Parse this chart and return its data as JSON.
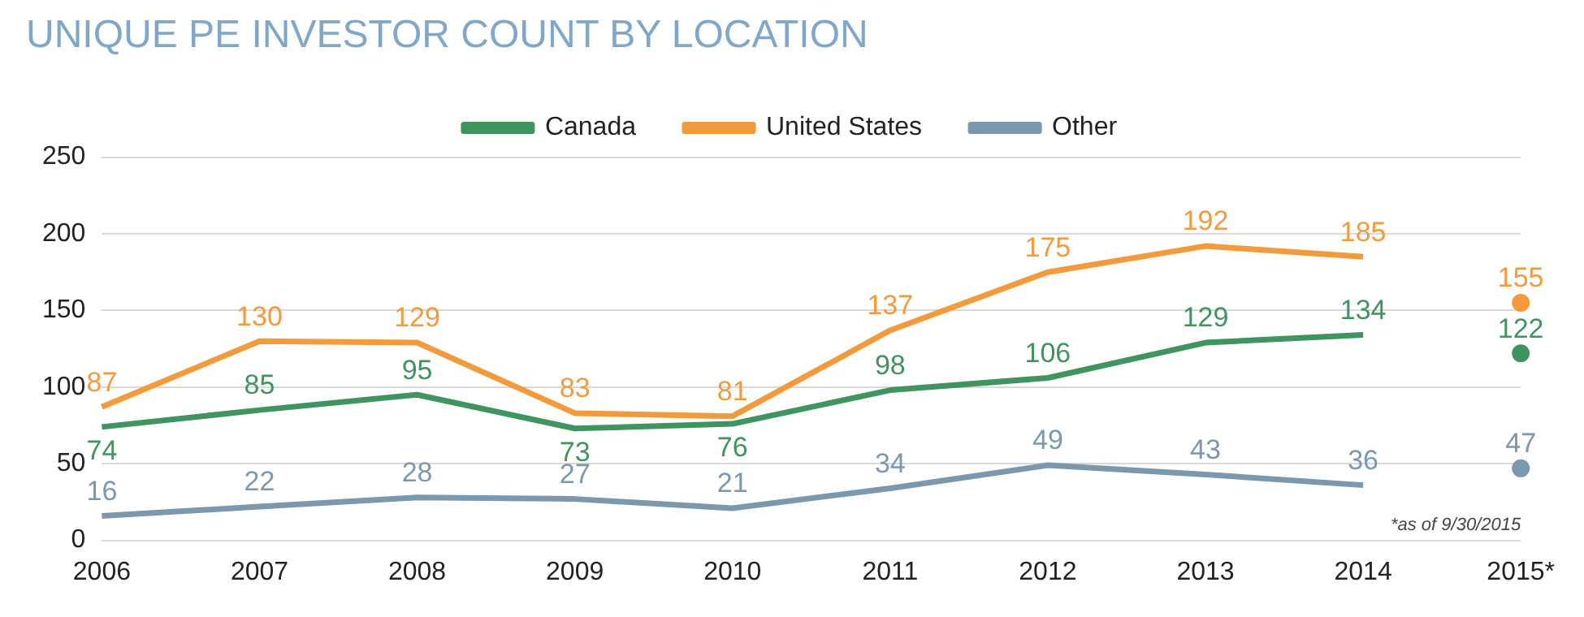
{
  "chart_data": {
    "type": "line",
    "title": "UNIQUE PE INVESTOR COUNT BY LOCATION",
    "categories": [
      "2006",
      "2007",
      "2008",
      "2009",
      "2010",
      "2011",
      "2012",
      "2013",
      "2014",
      "2015*"
    ],
    "series": [
      {
        "name": "Canada",
        "color": "#3f9460",
        "marker": "none",
        "values": [
          74,
          85,
          95,
          73,
          76,
          98,
          106,
          129,
          134,
          null
        ]
      },
      {
        "name": "United States",
        "color": "#f39a3c",
        "marker": "none",
        "values": [
          87,
          130,
          129,
          83,
          81,
          137,
          175,
          192,
          185,
          null
        ]
      },
      {
        "name": "Other",
        "color": "#7b98ae",
        "marker": "none",
        "values": [
          16,
          22,
          28,
          27,
          21,
          34,
          49,
          43,
          36,
          null
        ]
      },
      {
        "type": "scatter",
        "color": "#3f9460",
        "marker": "circle",
        "values": [
          null,
          null,
          null,
          null,
          null,
          null,
          null,
          null,
          null,
          122
        ]
      },
      {
        "type": "scatter",
        "color": "#f39a3c",
        "marker": "circle",
        "values": [
          null,
          null,
          null,
          null,
          null,
          null,
          null,
          null,
          null,
          155
        ]
      },
      {
        "type": "scatter",
        "color": "#7b98ae",
        "marker": "circle",
        "values": [
          null,
          null,
          null,
          null,
          null,
          null,
          null,
          null,
          null,
          47
        ]
      }
    ],
    "ylim": [
      0,
      250
    ],
    "yticks": [
      0,
      50,
      100,
      150,
      200,
      250
    ],
    "grid": "y",
    "legend": "top",
    "data_labels": true,
    "line_style": "solid",
    "annotations": [
      "*as of 9/30/2015"
    ]
  }
}
